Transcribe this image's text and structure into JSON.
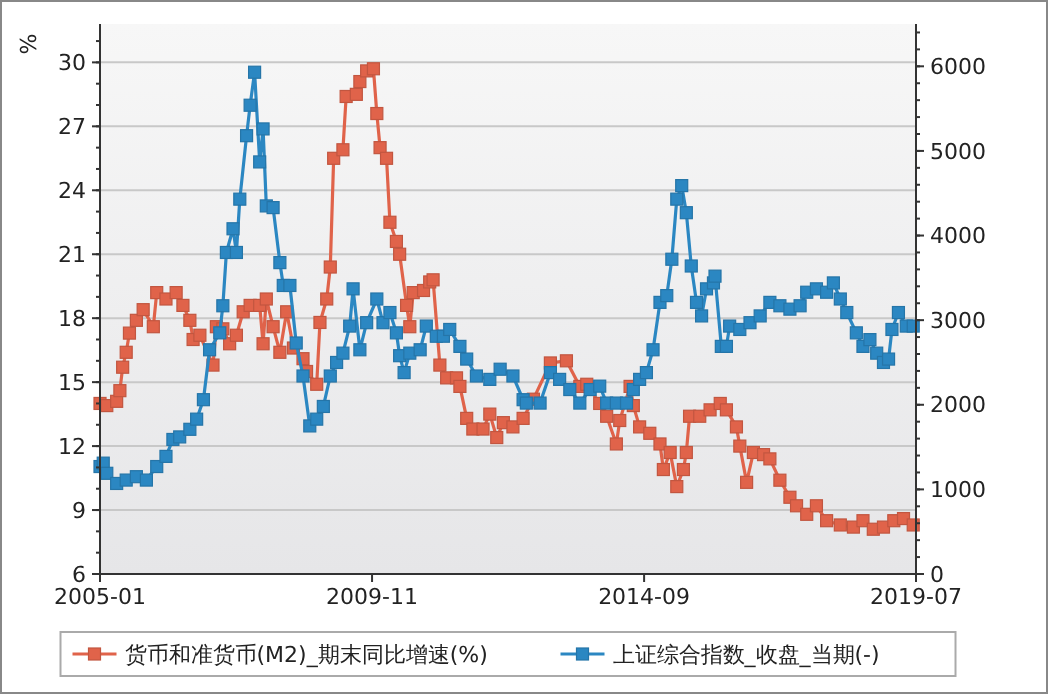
{
  "chart_data": {
    "type": "line",
    "ylabel": "%",
    "marker": "square",
    "grid": "y",
    "legend": "bottom",
    "xlim": [
      "2005-01",
      "2019-07"
    ],
    "xticks": [
      "2005-01",
      "2009-11",
      "2014-09",
      "2019-07"
    ],
    "ylim": [
      6,
      31.8
    ],
    "yticks": [
      6,
      9,
      12,
      15,
      18,
      21,
      24,
      27,
      30
    ],
    "y2lim": [
      0,
      6500
    ],
    "y2ticks": [
      0,
      1000,
      2000,
      3000,
      4000,
      5000,
      6000
    ],
    "series": [
      {
        "name": "货币和准货币(M2)_期末同比增速(%)",
        "color": "#e0634a",
        "x": [
          "2005-01-01",
          "2005-02-14",
          "2005-04-19",
          "2005-05-10",
          "2005-05-28",
          "2005-06-20",
          "2005-07-11",
          "2005-08-25",
          "2005-10-08",
          "2005-12-13",
          "2006-01-04",
          "2006-03-05",
          "2006-05-10",
          "2006-06-23",
          "2006-08-07",
          "2006-08-28",
          "2006-10-11",
          "2007-01-04",
          "2007-01-26",
          "2007-03-09",
          "2007-04-22",
          "2007-06-05",
          "2007-07-19",
          "2007-09-02",
          "2007-11-03",
          "2007-11-25",
          "2007-12-16",
          "2008-01-29",
          "2008-03-13",
          "2008-04-26",
          "2008-06-09",
          "2008-08-10",
          "2008-09-02",
          "2008-11-07",
          "2008-11-28",
          "2009-01-11",
          "2009-02-03",
          "2009-02-25",
          "2009-04-26",
          "2009-05-17",
          "2009-07-22",
          "2009-08-14",
          "2009-09-27",
          "2009-11-10",
          "2009-12-02",
          "2009-12-23",
          "2010-02-03",
          "2010-02-25",
          "2010-04-08",
          "2010-04-29",
          "2010-06-13",
          "2010-07-04",
          "2010-07-26",
          "2010-10-01",
          "2010-11-10",
          "2010-12-02",
          "2011-01-15",
          "2011-02-28",
          "2011-05-03",
          "2011-05-25",
          "2011-07-08",
          "2011-08-17",
          "2011-10-22",
          "2011-12-05",
          "2012-01-19",
          "2012-03-02",
          "2012-05-03",
          "2012-07-08",
          "2012-09-13",
          "2013-01-01",
          "2013-04-15",
          "2013-07-11",
          "2013-08-25",
          "2013-11-17",
          "2014-01-01",
          "2014-03-05",
          "2014-03-27",
          "2014-06-02",
          "2014-06-23",
          "2014-08-03",
          "2014-10-08",
          "2014-12-13",
          "2015-01-04",
          "2015-02-17",
          "2015-04-01",
          "2015-05-14",
          "2015-06-02",
          "2015-06-23",
          "2015-08-28",
          "2015-11-03",
          "2016-01-08",
          "2016-02-17",
          "2016-04-22",
          "2016-05-14",
          "2016-06-27",
          "2016-08-10",
          "2016-10-15",
          "2016-11-25",
          "2017-01-29",
          "2017-04-04",
          "2017-05-17",
          "2017-07-22",
          "2017-09-23",
          "2017-11-28",
          "2018-02-25",
          "2018-05-21",
          "2018-07-22",
          "2018-09-27",
          "2018-12-02",
          "2019-02-07",
          "2019-04-11",
          "2019-06-13"
        ],
        "values": [
          14.0,
          13.9,
          14.1,
          14.6,
          15.7,
          16.4,
          17.3,
          17.9,
          18.4,
          17.6,
          19.2,
          18.9,
          19.2,
          18.6,
          17.9,
          17.0,
          17.2,
          15.8,
          17.6,
          17.5,
          16.8,
          17.2,
          18.3,
          18.6,
          18.6,
          16.8,
          18.9,
          17.6,
          16.4,
          18.3,
          16.6,
          16.1,
          15.5,
          14.9,
          17.8,
          18.9,
          20.4,
          25.5,
          25.9,
          28.4,
          28.5,
          29.1,
          29.6,
          29.7,
          27.6,
          26.0,
          25.5,
          22.5,
          21.6,
          21.0,
          18.6,
          17.6,
          19.2,
          19.3,
          19.7,
          19.8,
          15.8,
          15.2,
          15.2,
          14.8,
          13.3,
          12.8,
          12.8,
          13.5,
          12.4,
          13.1,
          12.9,
          13.3,
          14.2,
          15.9,
          16.0,
          14.8,
          14.9,
          14.0,
          13.4,
          12.1,
          13.2,
          14.8,
          13.9,
          12.9,
          12.6,
          12.1,
          10.9,
          11.7,
          10.1,
          10.9,
          11.7,
          13.4,
          13.4,
          13.7,
          14.0,
          13.7,
          12.9,
          12.0,
          10.3,
          11.7,
          11.6,
          11.4,
          10.4,
          9.6,
          9.2,
          8.8,
          9.2,
          8.5,
          8.3,
          8.2,
          8.5,
          8.1,
          8.2,
          8.5,
          8.6,
          8.3
        ]
      },
      {
        "name": "上证综合指数_收盘_当期(-)",
        "color": "#2b87c2",
        "axis": "y2",
        "x": [
          "2005-01-01",
          "2005-01-22",
          "2005-02-14",
          "2005-04-19",
          "2005-06-20",
          "2005-08-25",
          "2005-10-29",
          "2006-01-04",
          "2006-03-05",
          "2006-04-19",
          "2006-06-02",
          "2006-08-07",
          "2006-09-20",
          "2006-11-03",
          "2006-12-13",
          "2007-02-17",
          "2007-03-09",
          "2007-04-01",
          "2007-05-14",
          "2007-06-05",
          "2007-06-27",
          "2007-08-10",
          "2007-09-02",
          "2007-10-01",
          "2007-11-03",
          "2007-11-25",
          "2007-12-16",
          "2008-01-29",
          "2008-03-13",
          "2008-04-04",
          "2008-05-17",
          "2008-06-27",
          "2008-08-10",
          "2008-09-23",
          "2008-11-07",
          "2008-12-20",
          "2009-02-03",
          "2009-03-16",
          "2009-04-26",
          "2009-06-09",
          "2009-07-01",
          "2009-08-14",
          "2009-09-27",
          "2009-12-02",
          "2010-01-11",
          "2010-02-25",
          "2010-04-08",
          "2010-04-29",
          "2010-05-28",
          "2010-07-04",
          "2010-09-09",
          "2010-10-19",
          "2010-12-23",
          "2011-02-07",
          "2011-03-20",
          "2011-05-25",
          "2011-07-08",
          "2011-09-09",
          "2011-12-05",
          "2012-02-10",
          "2012-05-03",
          "2012-07-08",
          "2012-07-29",
          "2012-10-26",
          "2013-01-01",
          "2013-03-02",
          "2013-05-07",
          "2013-07-11",
          "2013-09-16",
          "2013-11-17",
          "2014-01-01",
          "2014-03-05",
          "2014-05-10",
          "2014-06-23",
          "2014-08-03",
          "2014-09-16",
          "2014-10-29",
          "2014-12-13",
          "2015-01-26",
          "2015-02-28",
          "2015-04-01",
          "2015-05-03",
          "2015-06-02",
          "2015-07-04",
          "2015-08-07",
          "2015-09-09",
          "2015-10-11",
          "2015-11-25",
          "2015-12-05",
          "2016-01-15",
          "2016-02-17",
          "2016-03-09",
          "2016-05-14",
          "2016-07-19",
          "2016-09-23",
          "2016-11-25",
          "2017-01-29",
          "2017-04-04",
          "2017-06-09",
          "2017-07-22",
          "2017-09-23",
          "2017-11-28",
          "2018-01-11",
          "2018-02-25",
          "2018-04-08",
          "2018-06-09",
          "2018-07-22",
          "2018-09-05",
          "2018-10-19",
          "2018-12-02",
          "2019-01-04",
          "2019-01-26",
          "2019-03-09",
          "2019-04-29",
          "2019-06-13"
        ],
        "values": [
          1270,
          1310,
          1190,
          1070,
          1110,
          1150,
          1110,
          1270,
          1390,
          1590,
          1620,
          1710,
          1830,
          2060,
          2650,
          2850,
          3170,
          3800,
          4080,
          3800,
          4430,
          5180,
          5540,
          5930,
          4870,
          5260,
          4350,
          4330,
          3680,
          3410,
          3410,
          2730,
          2340,
          1750,
          1830,
          1980,
          2340,
          2500,
          2610,
          2930,
          3370,
          2650,
          2970,
          3250,
          2970,
          3090,
          2850,
          2580,
          2380,
          2610,
          2650,
          2930,
          2810,
          2810,
          2890,
          2690,
          2540,
          2340,
          2300,
          2420,
          2340,
          2060,
          2020,
          2020,
          2380,
          2300,
          2180,
          2020,
          2180,
          2220,
          2020,
          2020,
          2020,
          2180,
          2300,
          2380,
          2650,
          3210,
          3290,
          3720,
          4430,
          4590,
          4270,
          3640,
          3210,
          3050,
          3370,
          3440,
          3520,
          2690,
          2690,
          2930,
          2890,
          2970,
          3050,
          3210,
          3170,
          3130,
          3170,
          3330,
          3370,
          3330,
          3440,
          3250,
          3090,
          2850,
          2690,
          2770,
          2610,
          2500,
          2540,
          2890,
          3090,
          2930,
          2930
        ]
      }
    ]
  }
}
